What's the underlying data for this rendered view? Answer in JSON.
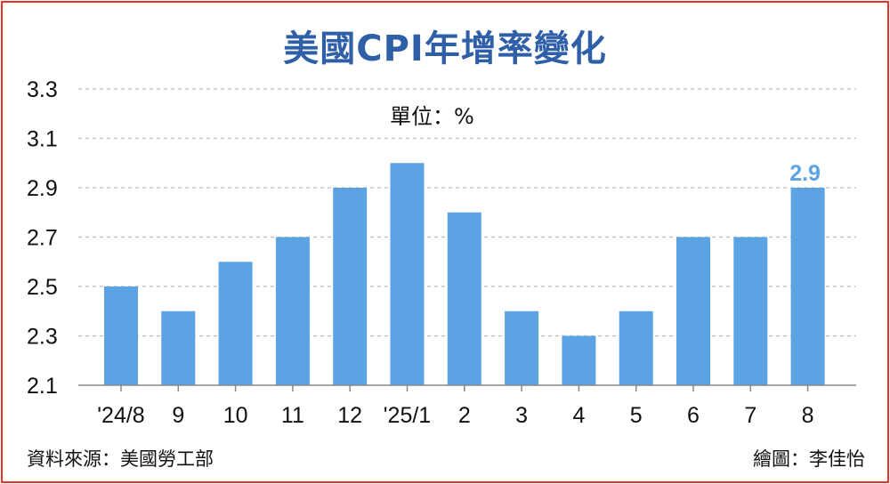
{
  "title": "美國CPI年增率變化",
  "unit_label": "單位：%",
  "source": "資料來源：美國勞工部",
  "credit": "繪圖：李佳怡",
  "colors": {
    "bar": "#5ba3e2",
    "title": "#2f5fa7",
    "border": "#e5322d",
    "grid": "#bdbdbd"
  },
  "chart_data": {
    "type": "bar",
    "title": "美國CPI年增率變化",
    "categories": [
      "'24/8",
      "9",
      "10",
      "11",
      "12",
      "'25/1",
      "2",
      "3",
      "4",
      "5",
      "6",
      "7",
      "8"
    ],
    "values": [
      2.5,
      2.4,
      2.6,
      2.7,
      2.9,
      3.0,
      2.8,
      2.4,
      2.3,
      2.4,
      2.7,
      2.7,
      2.9
    ],
    "ylim": [
      2.1,
      3.3
    ],
    "yticks": [
      "2.1",
      "2.3",
      "2.5",
      "2.7",
      "2.9",
      "3.1",
      "3.3"
    ],
    "grid": true,
    "data_labels": [
      {
        "index": 12,
        "text": "2.9"
      }
    ]
  }
}
